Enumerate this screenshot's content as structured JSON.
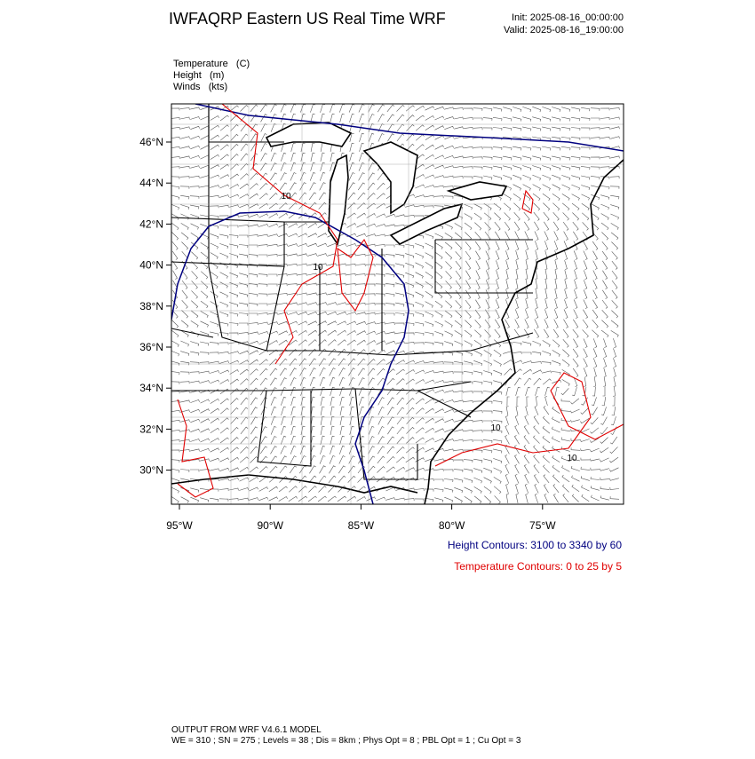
{
  "header": {
    "title": "IWFAQRP Eastern US Real Time WRF",
    "init": "Init: 2025-08-16_00:00:00",
    "valid": "Valid: 2025-08-16_19:00:00"
  },
  "fields": [
    "Temperature   (C)",
    "Height   (m)",
    "Winds   (kts)"
  ],
  "map": {
    "lat_labels": [
      "46°N",
      "44°N",
      "42°N",
      "40°N",
      "38°N",
      "36°N",
      "34°N",
      "32°N",
      "30°N"
    ],
    "lon_labels": [
      "95°W",
      "90°W",
      "85°W",
      "80°W",
      "75°W"
    ],
    "contour_labels": [
      "10",
      "10",
      "10",
      "10"
    ]
  },
  "legend": {
    "height": "Height Contours: 3100 to 3340 by 60",
    "temperature": "Temperature Contours: 0 to 25 by 5"
  },
  "footer": {
    "line1": "OUTPUT FROM WRF V4.6.1 MODEL",
    "line2": "WE = 310 ; SN = 275 ; Levels = 38 ; Dis = 8km ; Phys Opt = 8 ; PBL Opt = 1 ; Cu Opt = 3"
  }
}
